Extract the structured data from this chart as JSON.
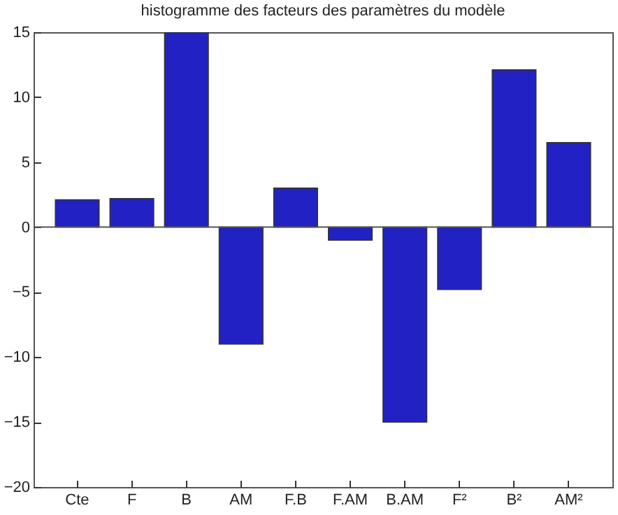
{
  "chart_data": {
    "type": "bar",
    "title": "histogramme des facteurs des paramètres du modèle",
    "categories": [
      "Cte",
      "F",
      "B",
      "AM",
      "F.B",
      "F.AM",
      "B.AM",
      "F²",
      "B²",
      "AM²"
    ],
    "values": [
      2.1,
      2.2,
      15,
      -9,
      3,
      -1,
      -15,
      -4.8,
      12.1,
      6.5
    ],
    "color": "#2222c4",
    "ylim": [
      -20,
      15
    ],
    "yticks": [
      -20,
      -15,
      -10,
      -5,
      0,
      5,
      10,
      15
    ],
    "grid": false,
    "ref_lines": [
      {
        "axis": "y",
        "value": 0,
        "color": "#555555"
      }
    ]
  }
}
